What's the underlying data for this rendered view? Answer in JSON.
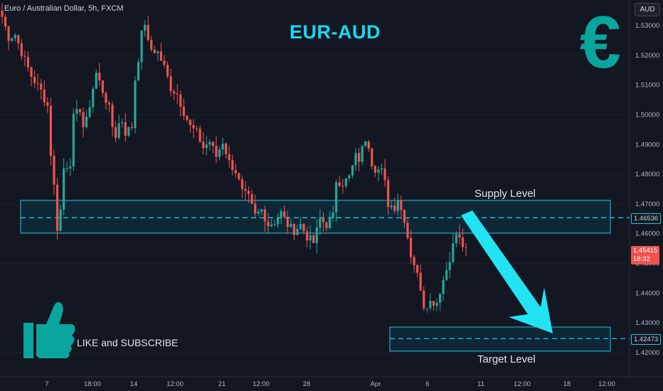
{
  "header": {
    "symbol_label": "Euro / Australian Dollar, 5h, FXCM",
    "currency_button": "AUD"
  },
  "annotations": {
    "title": "EUR-AUD",
    "euro_symbol": "€",
    "supply_label": "Supply Level",
    "target_label": "Target Level",
    "cta_text": "LIKE and SUBSCRIBE"
  },
  "price_tags": {
    "supply_price": "1.46536",
    "last_price": "1.45415",
    "countdown": "18:32",
    "target_price": "1.42473"
  },
  "colors": {
    "background": "#131722",
    "bull": "#26a69a",
    "bear": "#ef5350",
    "zone_border": "#1ec8e0",
    "zone_fill": "#0e2a3a",
    "arrow": "#22e3f2",
    "title": "#18d8f0",
    "euro": "#0aa59c"
  },
  "icons": [
    "thumbs-up-icon",
    "euro-icon"
  ],
  "chart_data": {
    "type": "candlestick",
    "title": "EUR-AUD",
    "ylim": [
      1.415,
      1.535
    ],
    "y_ticks": [
      "1.53000",
      "1.52000",
      "1.51000",
      "1.50000",
      "1.49000",
      "1.48000",
      "1.47000",
      "1.46000",
      "1.45000",
      "1.44000",
      "1.43000",
      "1.42000"
    ],
    "x_ticks": [
      "7",
      "18:00",
      "14",
      "12:00",
      "21",
      "12:00",
      "28",
      "Apr",
      "6",
      "11",
      "12:00",
      "18",
      "12:00"
    ],
    "supply_zone": {
      "low": 1.4602,
      "high": 1.4712,
      "level": 1.46536,
      "label": "Supply Level"
    },
    "target_zone": {
      "low": 1.4205,
      "high": 1.4286,
      "level": 1.42473,
      "label": "Target Level"
    },
    "last_price": 1.45415,
    "path": [
      [
        0,
        1.533
      ],
      [
        2,
        1.526
      ],
      [
        4,
        1.527
      ],
      [
        6,
        1.521
      ],
      [
        9,
        1.513
      ],
      [
        12,
        1.508
      ],
      [
        14,
        1.503
      ],
      [
        15,
        1.487
      ],
      [
        16,
        1.476
      ],
      [
        17,
        1.462
      ],
      [
        18,
        1.468
      ],
      [
        19,
        1.482
      ],
      [
        21,
        1.484
      ],
      [
        22,
        1.499
      ],
      [
        24,
        1.502
      ],
      [
        25,
        1.496
      ],
      [
        26,
        1.498
      ],
      [
        28,
        1.509
      ],
      [
        29,
        1.514
      ],
      [
        31,
        1.508
      ],
      [
        33,
        1.502
      ],
      [
        34,
        1.496
      ],
      [
        35,
        1.493
      ],
      [
        36,
        1.497
      ],
      [
        37,
        1.498
      ],
      [
        38,
        1.494
      ],
      [
        40,
        1.496
      ],
      [
        41,
        1.512
      ],
      [
        42,
        1.519
      ],
      [
        43,
        1.527
      ],
      [
        44,
        1.531
      ],
      [
        45,
        1.524
      ],
      [
        46,
        1.522
      ],
      [
        48,
        1.521
      ],
      [
        50,
        1.516
      ],
      [
        52,
        1.509
      ],
      [
        54,
        1.507
      ],
      [
        56,
        1.501
      ],
      [
        58,
        1.496
      ],
      [
        60,
        1.494
      ],
      [
        62,
        1.489
      ],
      [
        64,
        1.491
      ],
      [
        66,
        1.486
      ],
      [
        68,
        1.491
      ],
      [
        70,
        1.484
      ],
      [
        72,
        1.481
      ],
      [
        74,
        1.474
      ],
      [
        76,
        1.472
      ],
      [
        78,
        1.466
      ],
      [
        80,
        1.468
      ],
      [
        82,
        1.463
      ],
      [
        84,
        1.464
      ],
      [
        86,
        1.467
      ],
      [
        88,
        1.463
      ],
      [
        90,
        1.461
      ],
      [
        92,
        1.463
      ],
      [
        94,
        1.459
      ],
      [
        96,
        1.457
      ],
      [
        98,
        1.465
      ],
      [
        100,
        1.463
      ],
      [
        102,
        1.466
      ],
      [
        103,
        1.478
      ],
      [
        105,
        1.477
      ],
      [
        107,
        1.479
      ],
      [
        109,
        1.486
      ],
      [
        110,
        1.485
      ],
      [
        112,
        1.492
      ],
      [
        113,
        1.49
      ],
      [
        114,
        1.484
      ],
      [
        115,
        1.482
      ],
      [
        117,
        1.481
      ],
      [
        118,
        1.477
      ],
      [
        119,
        1.47
      ],
      [
        121,
        1.469
      ],
      [
        122,
        1.472
      ],
      [
        123,
        1.468
      ],
      [
        124,
        1.465
      ],
      [
        126,
        1.453
      ],
      [
        127,
        1.45
      ],
      [
        129,
        1.442
      ],
      [
        130,
        1.436
      ],
      [
        132,
        1.437
      ],
      [
        134,
        1.437
      ],
      [
        135,
        1.441
      ],
      [
        137,
        1.448
      ],
      [
        138,
        1.452
      ],
      [
        140,
        1.46
      ],
      [
        141,
        1.458
      ],
      [
        142,
        1.456
      ],
      [
        143,
        1.454
      ]
    ]
  }
}
